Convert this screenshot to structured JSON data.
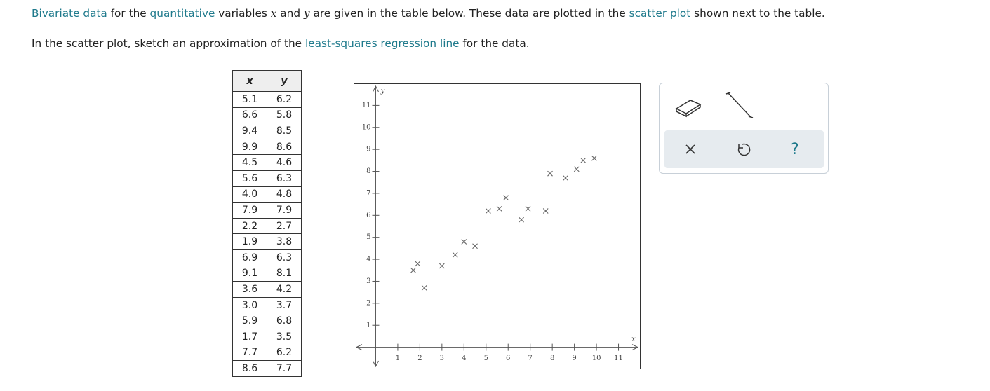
{
  "instructions": {
    "line1": [
      "Bivariate data",
      " for the ",
      "quantitative",
      " variables ",
      "x",
      " and ",
      "y",
      " are given in the table below. These data are plotted in the ",
      "scatter plot",
      " shown next to the table."
    ],
    "line2": [
      "In the scatter plot, sketch an approximation of the ",
      "least-squares regression line",
      " for the data."
    ]
  },
  "table": {
    "header": [
      "x",
      "y"
    ],
    "rows": [
      [
        "5.1",
        "6.2"
      ],
      [
        "6.6",
        "5.8"
      ],
      [
        "9.4",
        "8.5"
      ],
      [
        "9.9",
        "8.6"
      ],
      [
        "4.5",
        "4.6"
      ],
      [
        "5.6",
        "6.3"
      ],
      [
        "4.0",
        "4.8"
      ],
      [
        "7.9",
        "7.9"
      ],
      [
        "2.2",
        "2.7"
      ],
      [
        "1.9",
        "3.8"
      ],
      [
        "6.9",
        "6.3"
      ],
      [
        "9.1",
        "8.1"
      ],
      [
        "3.6",
        "4.2"
      ],
      [
        "3.0",
        "3.7"
      ],
      [
        "5.9",
        "6.8"
      ],
      [
        "1.7",
        "3.5"
      ],
      [
        "7.7",
        "6.2"
      ],
      [
        "8.6",
        "7.7"
      ]
    ]
  },
  "chart_data": {
    "type": "scatter",
    "x_label": "x",
    "y_label": "y",
    "x": [
      5.1,
      6.6,
      9.4,
      9.9,
      4.5,
      5.6,
      4.0,
      7.9,
      2.2,
      1.9,
      6.9,
      9.1,
      3.6,
      3.0,
      5.9,
      1.7,
      7.7,
      8.6
    ],
    "values": [
      6.2,
      5.8,
      8.5,
      8.6,
      4.6,
      6.3,
      4.8,
      7.9,
      2.7,
      3.8,
      6.3,
      8.1,
      4.2,
      3.7,
      6.8,
      3.5,
      6.2,
      7.7
    ],
    "color": "#666666",
    "xlim": [
      -1,
      12
    ],
    "ylim": [
      -1,
      12
    ],
    "xticks": [
      1,
      2,
      3,
      4,
      5,
      6,
      7,
      8,
      9,
      10,
      11
    ],
    "yticks": [
      1,
      2,
      3,
      4,
      5,
      6,
      7,
      8,
      9,
      10,
      11
    ]
  },
  "toolbar": {
    "help": "?"
  }
}
